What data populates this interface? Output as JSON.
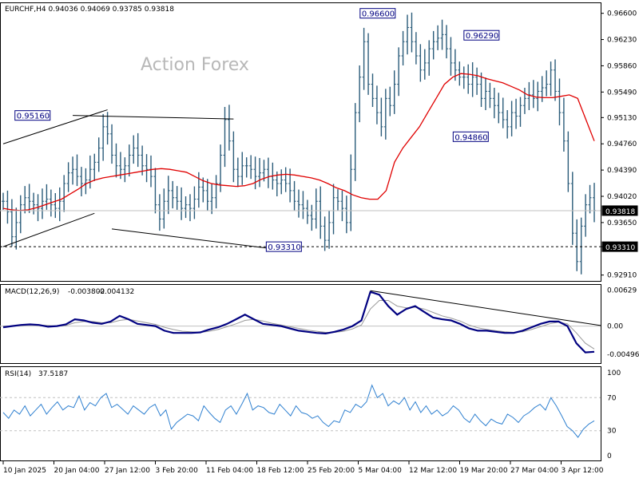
{
  "header": {
    "symbol_line": "EURCHF,H4  0.94036  0.94069  0.93785  0.93818",
    "watermark": "Action Forex"
  },
  "colors": {
    "price": "#2b5c7a",
    "ma": "#e00000",
    "macd": "#000080",
    "signal": "#999999",
    "rsi": "#2f80d0",
    "grid": "#c0c0c0",
    "label_border": "#000080"
  },
  "chart_data": [
    {
      "type": "ohlc",
      "title": "EURCHF,H4",
      "ohlc_header": {
        "open": 0.94036,
        "high": 0.94069,
        "low": 0.93785,
        "close": 0.93818
      },
      "y_ticks": [
        "0.96600",
        "0.96230",
        "0.95860",
        "0.95490",
        "0.95130",
        "0.94760",
        "0.94390",
        "0.94020",
        "0.93650",
        "0.93310",
        "0.92910"
      ],
      "ylim": [
        0.9285,
        0.9672
      ],
      "x_ticks": [
        "10 Jan 2025",
        "20 Jan 04:00",
        "27 Jan 12:00",
        "3 Feb 20:00",
        "11 Feb 04:00",
        "18 Feb 12:00",
        "25 Feb 20:00",
        "5 Mar 04:00",
        "12 Mar 12:00",
        "19 Mar 20:00",
        "27 Mar 04:00",
        "3 Apr 12:00"
      ],
      "current_price": "0.93818",
      "support_level": "0.93310",
      "price_labels": [
        "0.95160",
        "0.93310",
        "0.96600",
        "0.96290",
        "0.94860"
      ],
      "price_series": [
        0.9395,
        0.938,
        0.9345,
        0.9365,
        0.939,
        0.94,
        0.9395,
        0.939,
        0.9385,
        0.9395,
        0.9398,
        0.939,
        0.9385,
        0.9395,
        0.942,
        0.9435,
        0.944,
        0.943,
        0.942,
        0.9425,
        0.944,
        0.945,
        0.947,
        0.95,
        0.949,
        0.946,
        0.9445,
        0.944,
        0.9445,
        0.946,
        0.947,
        0.946,
        0.9445,
        0.944,
        0.943,
        0.939,
        0.937,
        0.9395,
        0.941,
        0.94,
        0.9395,
        0.9385,
        0.939,
        0.9385,
        0.9398,
        0.9415,
        0.941,
        0.9395,
        0.94,
        0.942,
        0.946,
        0.951,
        0.948,
        0.944,
        0.943,
        0.9445,
        0.9445,
        0.944,
        0.943,
        0.9435,
        0.944,
        0.943,
        0.9425,
        0.942,
        0.9425,
        0.942,
        0.941,
        0.9395,
        0.939,
        0.9385,
        0.9375,
        0.937,
        0.9395,
        0.936,
        0.934,
        0.9365,
        0.94,
        0.9395,
        0.9385,
        0.9365,
        0.944,
        0.952,
        0.957,
        0.962,
        0.956,
        0.954,
        0.952,
        0.95,
        0.954,
        0.953,
        0.956,
        0.96,
        0.962,
        0.964,
        0.962,
        0.96,
        0.958,
        0.959,
        0.961,
        0.962,
        0.9625,
        0.963,
        0.961,
        0.959,
        0.958,
        0.957,
        0.957,
        0.956,
        0.957,
        0.956,
        0.954,
        0.955,
        0.954,
        0.953,
        0.952,
        0.951,
        0.95,
        0.952,
        0.9515,
        0.953,
        0.954,
        0.9545,
        0.954,
        0.955,
        0.9555,
        0.956,
        0.958,
        0.955,
        0.952,
        0.948,
        0.942,
        0.935,
        0.931,
        0.936,
        0.939,
        0.94,
        0.9382
      ],
      "ma_series": [
        0.9385,
        0.9383,
        0.9382,
        0.9383,
        0.9386,
        0.939,
        0.9394,
        0.9398,
        0.9405,
        0.9412,
        0.942,
        0.9425,
        0.9428,
        0.943,
        0.9432,
        0.9434,
        0.9436,
        0.9438,
        0.944,
        0.9441,
        0.944,
        0.9438,
        0.9436,
        0.943,
        0.9424,
        0.942,
        0.9418,
        0.9417,
        0.9416,
        0.9417,
        0.942,
        0.9426,
        0.943,
        0.9432,
        0.9433,
        0.9432,
        0.943,
        0.9428,
        0.9425,
        0.942,
        0.9414,
        0.941,
        0.9404,
        0.94,
        0.9398,
        0.9398,
        0.941,
        0.945,
        0.947,
        0.9485,
        0.95,
        0.952,
        0.954,
        0.956,
        0.957,
        0.9575,
        0.9574,
        0.9572,
        0.9568,
        0.9565,
        0.9562,
        0.9557,
        0.9552,
        0.9545,
        0.9542,
        0.9541,
        0.9541,
        0.9543,
        0.9545,
        0.954,
        0.951,
        0.948
      ]
    },
    {
      "type": "line",
      "title": "MACD(12,26,9)",
      "header_values": [
        "-0.003802",
        "-0.004132"
      ],
      "y_ticks": [
        "0.00629",
        "0.00",
        "-0.004965"
      ],
      "ylim": [
        -0.0062,
        0.0068
      ],
      "macd_series": [
        -0.0002,
        0.0,
        0.0002,
        0.0003,
        0.0002,
        -0.0001,
        0.0,
        0.0003,
        0.0012,
        0.001,
        0.0006,
        0.0004,
        0.0008,
        0.0018,
        0.0012,
        0.0004,
        0.0002,
        0.0,
        -0.0008,
        -0.0012,
        -0.0012,
        -0.0012,
        -0.0011,
        -0.0006,
        -0.0002,
        0.0004,
        0.0012,
        0.002,
        0.0012,
        0.0004,
        0.0002,
        0.0,
        -0.0004,
        -0.0008,
        -0.001,
        -0.0012,
        -0.0013,
        -0.001,
        -0.0006,
        0.0,
        0.001,
        0.006,
        0.0055,
        0.0035,
        0.002,
        0.003,
        0.0035,
        0.0025,
        0.0015,
        0.0012,
        0.001,
        0.0004,
        -0.0004,
        -0.0008,
        -0.0008,
        -0.001,
        -0.0012,
        -0.0012,
        -0.0008,
        -0.0002,
        0.0004,
        0.0008,
        0.0008,
        0.0,
        -0.003,
        -0.0046,
        -0.0045
      ],
      "signal_series": [
        0.0,
        0.0,
        0.0001,
        0.0002,
        0.0002,
        0.0001,
        0.0,
        0.0001,
        0.0006,
        0.0008,
        0.0008,
        0.0006,
        0.0006,
        0.001,
        0.0012,
        0.0009,
        0.0006,
        0.0003,
        -0.0002,
        -0.0006,
        -0.0009,
        -0.001,
        -0.0011,
        -0.0009,
        -0.0006,
        -0.0001,
        0.0004,
        0.001,
        0.0012,
        0.0009,
        0.0005,
        0.0002,
        -0.0001,
        -0.0004,
        -0.0007,
        -0.0009,
        -0.0011,
        -0.0011,
        -0.0009,
        -0.0005,
        0.0002,
        0.003,
        0.0045,
        0.0045,
        0.0035,
        0.0032,
        0.0033,
        0.003,
        0.0024,
        0.0018,
        0.0014,
        0.0009,
        0.0002,
        -0.0003,
        -0.0006,
        -0.0008,
        -0.001,
        -0.0011,
        -0.001,
        -0.0006,
        -0.0001,
        0.0004,
        0.0007,
        0.0004,
        -0.0012,
        -0.003,
        -0.004
      ]
    },
    {
      "type": "line",
      "title": "RSI(14)",
      "header_value": "37.5187",
      "y_ticks": [
        "100",
        "70",
        "30",
        "0"
      ],
      "ylim": [
        -5,
        105
      ],
      "rsi_series": [
        52,
        45,
        55,
        50,
        60,
        48,
        55,
        62,
        50,
        58,
        65,
        55,
        60,
        58,
        72,
        55,
        64,
        60,
        70,
        75,
        58,
        62,
        56,
        50,
        60,
        55,
        50,
        58,
        62,
        48,
        55,
        32,
        40,
        45,
        50,
        48,
        42,
        60,
        52,
        45,
        40,
        55,
        60,
        50,
        62,
        75,
        55,
        60,
        58,
        52,
        50,
        62,
        55,
        48,
        60,
        52,
        50,
        45,
        48,
        40,
        35,
        42,
        40,
        55,
        52,
        62,
        58,
        65,
        85,
        70,
        75,
        60,
        66,
        62,
        70,
        55,
        65,
        52,
        60,
        50,
        55,
        48,
        52,
        60,
        55,
        45,
        40,
        50,
        42,
        36,
        44,
        40,
        38,
        50,
        46,
        40,
        48,
        52,
        58,
        62,
        55,
        70,
        60,
        48,
        35,
        30,
        22,
        32,
        38,
        42
      ]
    }
  ]
}
